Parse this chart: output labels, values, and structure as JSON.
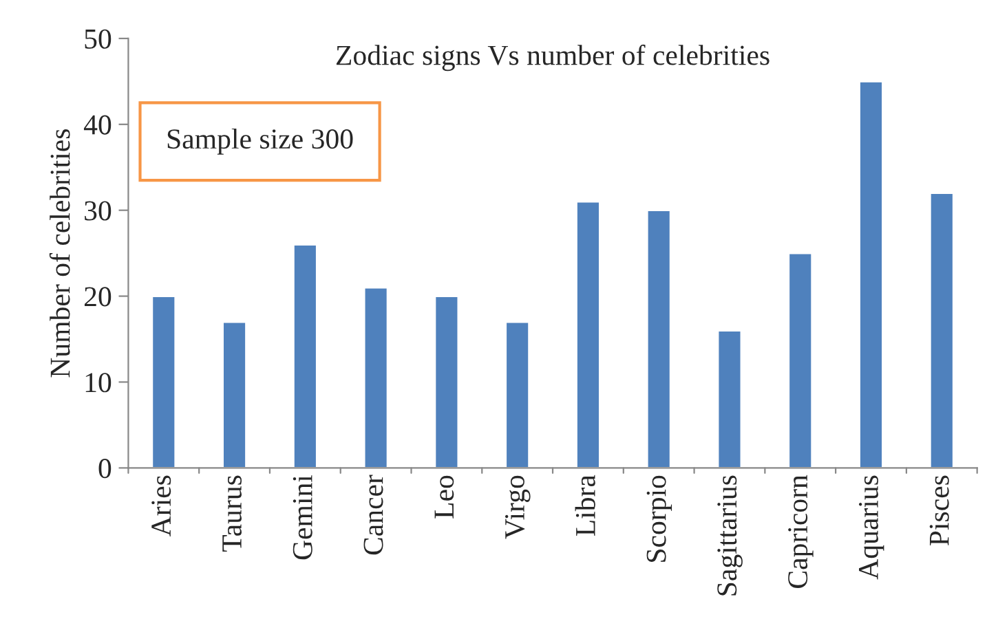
{
  "chart_data": {
    "type": "bar",
    "title": "Zodiac signs Vs number of celebrities",
    "ylabel": "Number of celebrities",
    "categories": [
      "Aries",
      "Taurus",
      "Gemini",
      "Cancer",
      "Leo",
      "Virgo",
      "Libra",
      "Scorpio",
      "Sagittarius",
      "Capricorn",
      "Aquarius",
      "Pisces"
    ],
    "values": [
      20,
      17,
      26,
      21,
      20,
      17,
      31,
      30,
      16,
      25,
      45,
      32
    ],
    "color": "#4f81bd",
    "ylim": [
      0,
      50
    ],
    "yticks": [
      0,
      10,
      20,
      30,
      40,
      50
    ],
    "grid": false,
    "legend": false,
    "annotations": [
      "Sample size 300"
    ]
  }
}
